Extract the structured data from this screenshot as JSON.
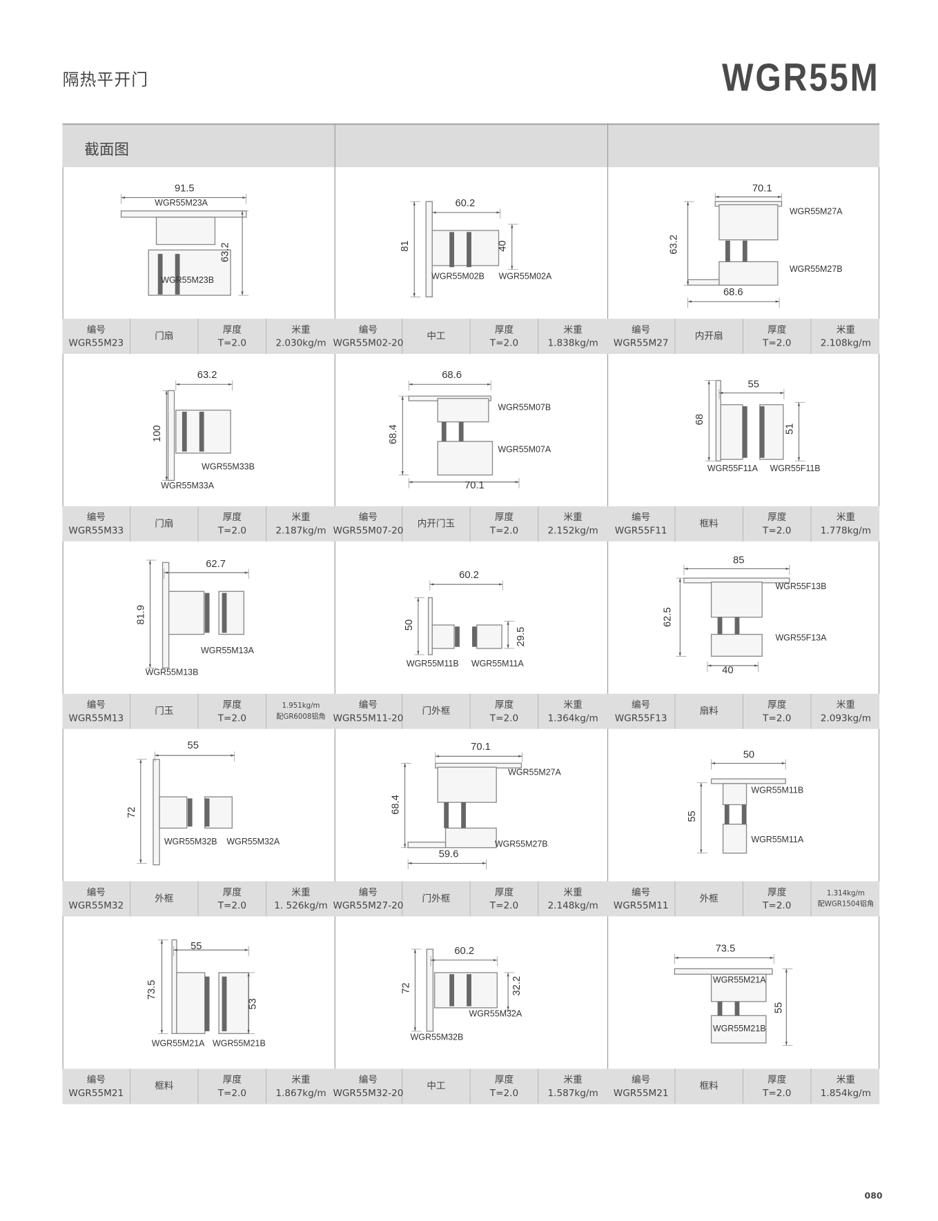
{
  "header": {
    "title_cn": "隔热平开门",
    "model": "WGR55M",
    "section_label": "截面图"
  },
  "page_number": "080",
  "colors": {
    "band": "#dedede",
    "header": "#dcdcdc",
    "border": "#999999",
    "text": "#444444"
  },
  "drawings": [
    {
      "dims": [
        "91.5",
        "63.2"
      ],
      "parts": [
        "WGR55M23A",
        "WGR55M23B"
      ]
    },
    {
      "dims": [
        "60.2",
        "81",
        "40"
      ],
      "parts": [
        "WGR55M02B",
        "WGR55M02A"
      ]
    },
    {
      "dims": [
        "70.1",
        "63.2",
        "68.6"
      ],
      "parts": [
        "WGR55M27A",
        "WGR55M27B"
      ]
    },
    {
      "dims": [
        "63.2",
        "100"
      ],
      "parts": [
        "WGR55M33B",
        "WGR55M33A"
      ]
    },
    {
      "dims": [
        "68.6",
        "68.4",
        "70.1"
      ],
      "parts": [
        "WGR55M07B",
        "WGR55M07A"
      ]
    },
    {
      "dims": [
        "55",
        "68",
        "51"
      ],
      "parts": [
        "WGR55F11A",
        "WGR55F11B"
      ]
    },
    {
      "dims": [
        "62.7",
        "81.9"
      ],
      "parts": [
        "WGR55M13A",
        "WGR55M13B"
      ]
    },
    {
      "dims": [
        "60.2",
        "50",
        "29.5"
      ],
      "parts": [
        "WGR55M11B",
        "WGR55M11A"
      ]
    },
    {
      "dims": [
        "85",
        "62.5",
        "40"
      ],
      "parts": [
        "WGR55F13B",
        "WGR55F13A"
      ]
    },
    {
      "dims": [
        "55",
        "72"
      ],
      "parts": [
        "WGR55M32B",
        "WGR55M32A"
      ]
    },
    {
      "dims": [
        "70.1",
        "68.4",
        "59.6"
      ],
      "parts": [
        "WGR55M27A",
        "WGR55M27B"
      ]
    },
    {
      "dims": [
        "50",
        "55"
      ],
      "parts": [
        "WGR55M11B",
        "WGR55M11A"
      ]
    },
    {
      "dims": [
        "55",
        "73.5",
        "53"
      ],
      "parts": [
        "WGR55M21A",
        "WGR55M21B"
      ]
    },
    {
      "dims": [
        "60.2",
        "72",
        "32.2"
      ],
      "parts": [
        "WGR55M32A",
        "WGR55M32B"
      ]
    },
    {
      "dims": [
        "73.5",
        "55"
      ],
      "parts": [
        "WGR55M21A",
        "WGR55M21B"
      ]
    }
  ],
  "info": [
    {
      "code_label": "编号",
      "code": "WGR55M23",
      "name": "门扇",
      "thickness_label": "厚度",
      "thickness": "T=2.0",
      "weight_label": "米重",
      "weight": "2.030kg/m"
    },
    {
      "code_label": "编号",
      "code": "WGR55M02-20",
      "name": "中工",
      "thickness_label": "厚度",
      "thickness": "T=2.0",
      "weight_label": "米重",
      "weight": "1.838kg/m"
    },
    {
      "code_label": "编号",
      "code": "WGR55M27",
      "name": "内开扇",
      "thickness_label": "厚度",
      "thickness": "T=2.0",
      "weight_label": "米重",
      "weight": "2.108kg/m"
    },
    {
      "code_label": "编号",
      "code": "WGR55M33",
      "name": "门扇",
      "thickness_label": "厚度",
      "thickness": "T=2.0",
      "weight_label": "米重",
      "weight": "2.187kg/m"
    },
    {
      "code_label": "编号",
      "code": "WGR55M07-20",
      "name": "内开门玉",
      "thickness_label": "厚度",
      "thickness": "T=2.0",
      "weight_label": "米重",
      "weight": "2.152kg/m"
    },
    {
      "code_label": "编号",
      "code": "WGR55F11",
      "name": "框料",
      "thickness_label": "厚度",
      "thickness": "T=2.0",
      "weight_label": "米重",
      "weight": "1.778kg/m"
    },
    {
      "code_label": "编号",
      "code": "WGR55M13",
      "name": "门玉",
      "thickness_label": "厚度",
      "thickness": "T=2.0",
      "weight_label": "1.951kg/m",
      "weight": "配GR6008铝角",
      "small": true
    },
    {
      "code_label": "编号",
      "code": "WGR55M11-20",
      "name": "门外框",
      "thickness_label": "厚度",
      "thickness": "T=2.0",
      "weight_label": "米重",
      "weight": "1.364kg/m"
    },
    {
      "code_label": "编号",
      "code": "WGR55F13",
      "name": "扇料",
      "thickness_label": "厚度",
      "thickness": "T=2.0",
      "weight_label": "米重",
      "weight": "2.093kg/m"
    },
    {
      "code_label": "编号",
      "code": "WGR55M32",
      "name": "外框",
      "thickness_label": "厚度",
      "thickness": "T=2.0",
      "weight_label": "米重",
      "weight": "1. 526kg/m"
    },
    {
      "code_label": "编号",
      "code": "WGR55M27-20",
      "name": "门外框",
      "thickness_label": "厚度",
      "thickness": "T=2.0",
      "weight_label": "米重",
      "weight": "2.148kg/m"
    },
    {
      "code_label": "编号",
      "code": "WGR55M11",
      "name": "外框",
      "thickness_label": "厚度",
      "thickness": "T=2.0",
      "weight_label": "1.314kg/m",
      "weight": "配WGR1504铝角",
      "small": true
    },
    {
      "code_label": "编号",
      "code": "WGR55M21",
      "name": "框料",
      "thickness_label": "厚度",
      "thickness": "T=2.0",
      "weight_label": "米重",
      "weight": "1.867kg/m"
    },
    {
      "code_label": "编号",
      "code": "WGR55M32-20",
      "name": "中工",
      "thickness_label": "厚度",
      "thickness": "T=2.0",
      "weight_label": "米重",
      "weight": "1.587kg/m"
    },
    {
      "code_label": "编号",
      "code": "WGR55M21",
      "name": "框料",
      "thickness_label": "厚度",
      "thickness": "T=2.0",
      "weight_label": "米重",
      "weight": "1.854kg/m"
    }
  ]
}
